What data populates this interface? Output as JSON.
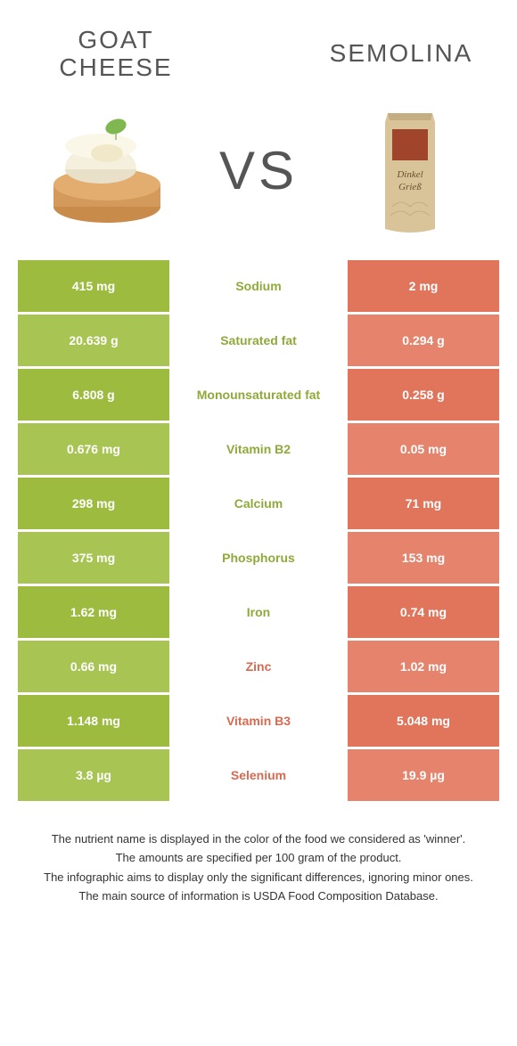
{
  "header": {
    "left_title_line1": "GOAT",
    "left_title_line2": "CHEESE",
    "right_title": "SEMOLINA",
    "vs": "VS"
  },
  "colors": {
    "green_a": "#9cbb3f",
    "green_b": "#a8c452",
    "orange_a": "#e0755c",
    "orange_b": "#e5836c",
    "label_green": "#8fa93a",
    "label_orange": "#d96a52",
    "text_gray": "#555555"
  },
  "rows": [
    {
      "left": "415 mg",
      "label": "Sodium",
      "right": "2 mg",
      "winner": "green"
    },
    {
      "left": "20.639 g",
      "label": "Saturated fat",
      "right": "0.294 g",
      "winner": "green"
    },
    {
      "left": "6.808 g",
      "label": "Monounsaturated fat",
      "right": "0.258 g",
      "winner": "green"
    },
    {
      "left": "0.676 mg",
      "label": "Vitamin B2",
      "right": "0.05 mg",
      "winner": "green"
    },
    {
      "left": "298 mg",
      "label": "Calcium",
      "right": "71 mg",
      "winner": "green"
    },
    {
      "left": "375 mg",
      "label": "Phosphorus",
      "right": "153 mg",
      "winner": "green"
    },
    {
      "left": "1.62 mg",
      "label": "Iron",
      "right": "0.74 mg",
      "winner": "green"
    },
    {
      "left": "0.66 mg",
      "label": "Zinc",
      "right": "1.02 mg",
      "winner": "orange"
    },
    {
      "left": "1.148 mg",
      "label": "Vitamin B3",
      "right": "5.048 mg",
      "winner": "orange"
    },
    {
      "left": "3.8 µg",
      "label": "Selenium",
      "right": "19.9 µg",
      "winner": "orange"
    }
  ],
  "footer": {
    "line1": "The nutrient name is displayed in the color of the food we considered as 'winner'.",
    "line2": "The amounts are specified per 100 gram of the product.",
    "line3": "The infographic aims to display only the significant differences, ignoring minor ones.",
    "line4": "The main source of information is USDA Food Composition Database."
  },
  "bag_label": "Dinkel Grieß"
}
